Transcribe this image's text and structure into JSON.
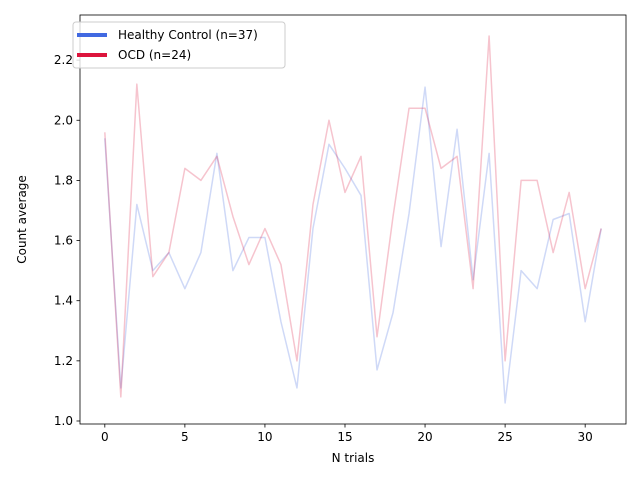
{
  "chart_data": {
    "type": "line",
    "title": "",
    "xlabel": "N trials",
    "ylabel": "Count average",
    "xlim": [
      -1.55,
      32.55
    ],
    "ylim": [
      0.99,
      2.35
    ],
    "xticks": [
      0,
      5,
      10,
      15,
      20,
      25,
      30
    ],
    "yticks": [
      1.0,
      1.2,
      1.4,
      1.6,
      1.8,
      2.0,
      2.2
    ],
    "ytick_labels": [
      "1.0",
      "1.2",
      "1.4",
      "1.6",
      "1.8",
      "2.0",
      "2.2"
    ],
    "grid": false,
    "legend_position": "top-left",
    "x": [
      0,
      1,
      2,
      3,
      4,
      5,
      6,
      7,
      8,
      9,
      10,
      11,
      12,
      13,
      14,
      15,
      16,
      17,
      18,
      19,
      20,
      21,
      22,
      23,
      24,
      25,
      26,
      27,
      28,
      29,
      30,
      31
    ],
    "series": [
      {
        "name": "Healthy Control (n=37)",
        "color": "#4169e1",
        "values": [
          1.94,
          1.11,
          1.72,
          1.5,
          1.56,
          1.44,
          1.56,
          1.89,
          1.5,
          1.61,
          1.61,
          1.33,
          1.11,
          1.64,
          1.92,
          1.84,
          1.75,
          1.17,
          1.36,
          1.69,
          2.11,
          1.58,
          1.97,
          1.47,
          1.89,
          1.06,
          1.5,
          1.44,
          1.67,
          1.69,
          1.33,
          1.64
        ]
      },
      {
        "name": "OCD (n=24)",
        "color": "#dc143c",
        "values": [
          1.96,
          1.08,
          2.12,
          1.48,
          1.56,
          1.84,
          1.8,
          1.88,
          1.68,
          1.52,
          1.64,
          1.52,
          1.2,
          1.72,
          2.0,
          1.76,
          1.88,
          1.28,
          1.68,
          2.04,
          2.04,
          1.84,
          1.88,
          1.44,
          2.28,
          1.2,
          1.8,
          1.8,
          1.56,
          1.76,
          1.44,
          1.64
        ]
      }
    ]
  }
}
